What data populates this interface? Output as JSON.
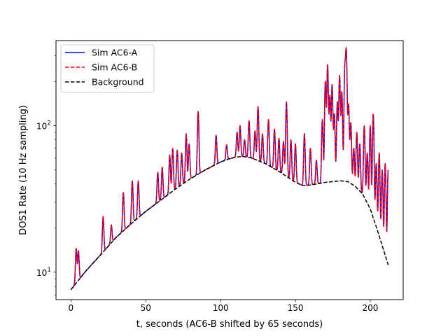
{
  "chart_data": {
    "type": "line",
    "title": "",
    "xlabel": "t, seconds (AC6-B shifted by 65 seconds)",
    "ylabel": "DOS1 Rate (10 Hz sampling)",
    "xlim": [
      -10,
      222
    ],
    "ylim": [
      6.5,
      380
    ],
    "yscale": "log",
    "grid": false,
    "legend_position": "upper-left",
    "x_ticks": [
      0,
      50,
      100,
      150,
      200
    ],
    "y_ticks": [
      10,
      100
    ],
    "x_tick_labels": [
      "0",
      "50",
      "100",
      "150",
      "200"
    ],
    "y_tick_labels": [
      "10",
      "10",
      "1",
      "2"
    ],
    "background": {
      "x": [
        0,
        10,
        20,
        30,
        40,
        50,
        60,
        70,
        80,
        90,
        100,
        105,
        110,
        115,
        120,
        130,
        140,
        150,
        155,
        160,
        170,
        180,
        185,
        190,
        195,
        200,
        205,
        210,
        212
      ],
      "y": [
        7.6,
        10.2,
        13.2,
        17.2,
        21.3,
        26,
        31,
        37,
        43.5,
        50,
        56.5,
        59,
        61,
        61.5,
        60.5,
        55,
        48,
        41,
        39,
        39.3,
        41,
        42,
        41.5,
        38.5,
        34,
        27,
        19,
        13,
        11.2
      ]
    },
    "peaks": [
      {
        "x": 3.5,
        "y": 14.5
      },
      {
        "x": 5,
        "y": 14
      },
      {
        "x": 21.5,
        "y": 24
      },
      {
        "x": 27,
        "y": 21
      },
      {
        "x": 35,
        "y": 35
      },
      {
        "x": 41,
        "y": 42
      },
      {
        "x": 45,
        "y": 42
      },
      {
        "x": 58,
        "y": 48
      },
      {
        "x": 61,
        "y": 52
      },
      {
        "x": 66,
        "y": 63
      },
      {
        "x": 68,
        "y": 70
      },
      {
        "x": 71,
        "y": 68
      },
      {
        "x": 74,
        "y": 65
      },
      {
        "x": 77,
        "y": 88
      },
      {
        "x": 79,
        "y": 75
      },
      {
        "x": 85,
        "y": 125
      },
      {
        "x": 97,
        "y": 86
      },
      {
        "x": 104,
        "y": 74
      },
      {
        "x": 111,
        "y": 90
      },
      {
        "x": 113,
        "y": 100
      },
      {
        "x": 116,
        "y": 80
      },
      {
        "x": 119,
        "y": 108
      },
      {
        "x": 123,
        "y": 92
      },
      {
        "x": 125,
        "y": 135
      },
      {
        "x": 128,
        "y": 88
      },
      {
        "x": 132,
        "y": 110
      },
      {
        "x": 136,
        "y": 95
      },
      {
        "x": 139,
        "y": 82
      },
      {
        "x": 142,
        "y": 78
      },
      {
        "x": 144,
        "y": 145
      },
      {
        "x": 147,
        "y": 80
      },
      {
        "x": 150,
        "y": 75
      },
      {
        "x": 156,
        "y": 88
      },
      {
        "x": 160,
        "y": 70
      },
      {
        "x": 164,
        "y": 58
      },
      {
        "x": 168,
        "y": 110
      },
      {
        "x": 170,
        "y": 200
      },
      {
        "x": 171.5,
        "y": 260
      },
      {
        "x": 173,
        "y": 160
      },
      {
        "x": 174.5,
        "y": 190
      },
      {
        "x": 176,
        "y": 120
      },
      {
        "x": 178,
        "y": 145
      },
      {
        "x": 179.5,
        "y": 220
      },
      {
        "x": 181,
        "y": 170
      },
      {
        "x": 183,
        "y": 240
      },
      {
        "x": 184,
        "y": 320
      },
      {
        "x": 185.5,
        "y": 140
      },
      {
        "x": 187,
        "y": 105
      },
      {
        "x": 189,
        "y": 70
      },
      {
        "x": 191,
        "y": 90
      },
      {
        "x": 193,
        "y": 75
      },
      {
        "x": 196,
        "y": 100
      },
      {
        "x": 198,
        "y": 65
      },
      {
        "x": 200,
        "y": 100
      },
      {
        "x": 202,
        "y": 120
      },
      {
        "x": 204,
        "y": 55
      },
      {
        "x": 206,
        "y": 65
      },
      {
        "x": 208,
        "y": 50
      },
      {
        "x": 210,
        "y": 55
      },
      {
        "x": 212,
        "y": 50
      }
    ],
    "series": [
      {
        "name": "Sim AC6-A",
        "color": "#0000ff",
        "style": "solid"
      },
      {
        "name": "Sim AC6-B",
        "color": "#ff0000",
        "style": "dashed"
      },
      {
        "name": "Background",
        "color": "#000000",
        "style": "dashed"
      }
    ]
  }
}
